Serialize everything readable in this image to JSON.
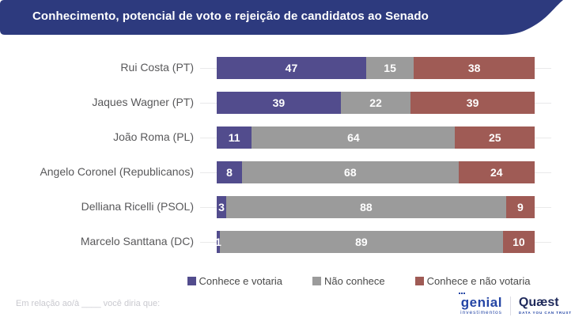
{
  "header": {
    "title": "Conhecimento, potencial de voto e rejeição de candidatos ao Senado",
    "banner_color": "#2d3a7e"
  },
  "chart_data": {
    "type": "bar",
    "orientation": "horizontal",
    "stacked": true,
    "title": "Conhecimento, potencial de voto e rejeição de candidatos ao Senado",
    "categories": [
      "Rui Costa (PT)",
      "Jaques Wagner (PT)",
      "João Roma (PL)",
      "Angelo Coronel (Republicanos)",
      "Delliana Ricelli (PSOL)",
      "Marcelo Santtana (DC)"
    ],
    "series": [
      {
        "name": "Conhece e votaria",
        "color": "#524c8d",
        "values": [
          47,
          39,
          11,
          8,
          3,
          1
        ]
      },
      {
        "name": "Não conhece",
        "color": "#9b9b9b",
        "values": [
          15,
          22,
          64,
          68,
          88,
          89
        ]
      },
      {
        "name": "Conhece e não votaria",
        "color": "#9f5b55",
        "values": [
          38,
          39,
          25,
          24,
          9,
          10
        ]
      }
    ],
    "xlim": [
      0,
      100
    ],
    "value_labels": "inside-white-bold",
    "legend_position": "bottom",
    "grid": "row-baseline-lines"
  },
  "footer": {
    "note": "Em relação ao/à ____ você diria que:"
  },
  "logos": {
    "genial": {
      "name": "genial",
      "sub": "investimentos"
    },
    "quaest": {
      "name": "Quæst",
      "tagline": "DATA YOU CAN TRUST"
    }
  }
}
